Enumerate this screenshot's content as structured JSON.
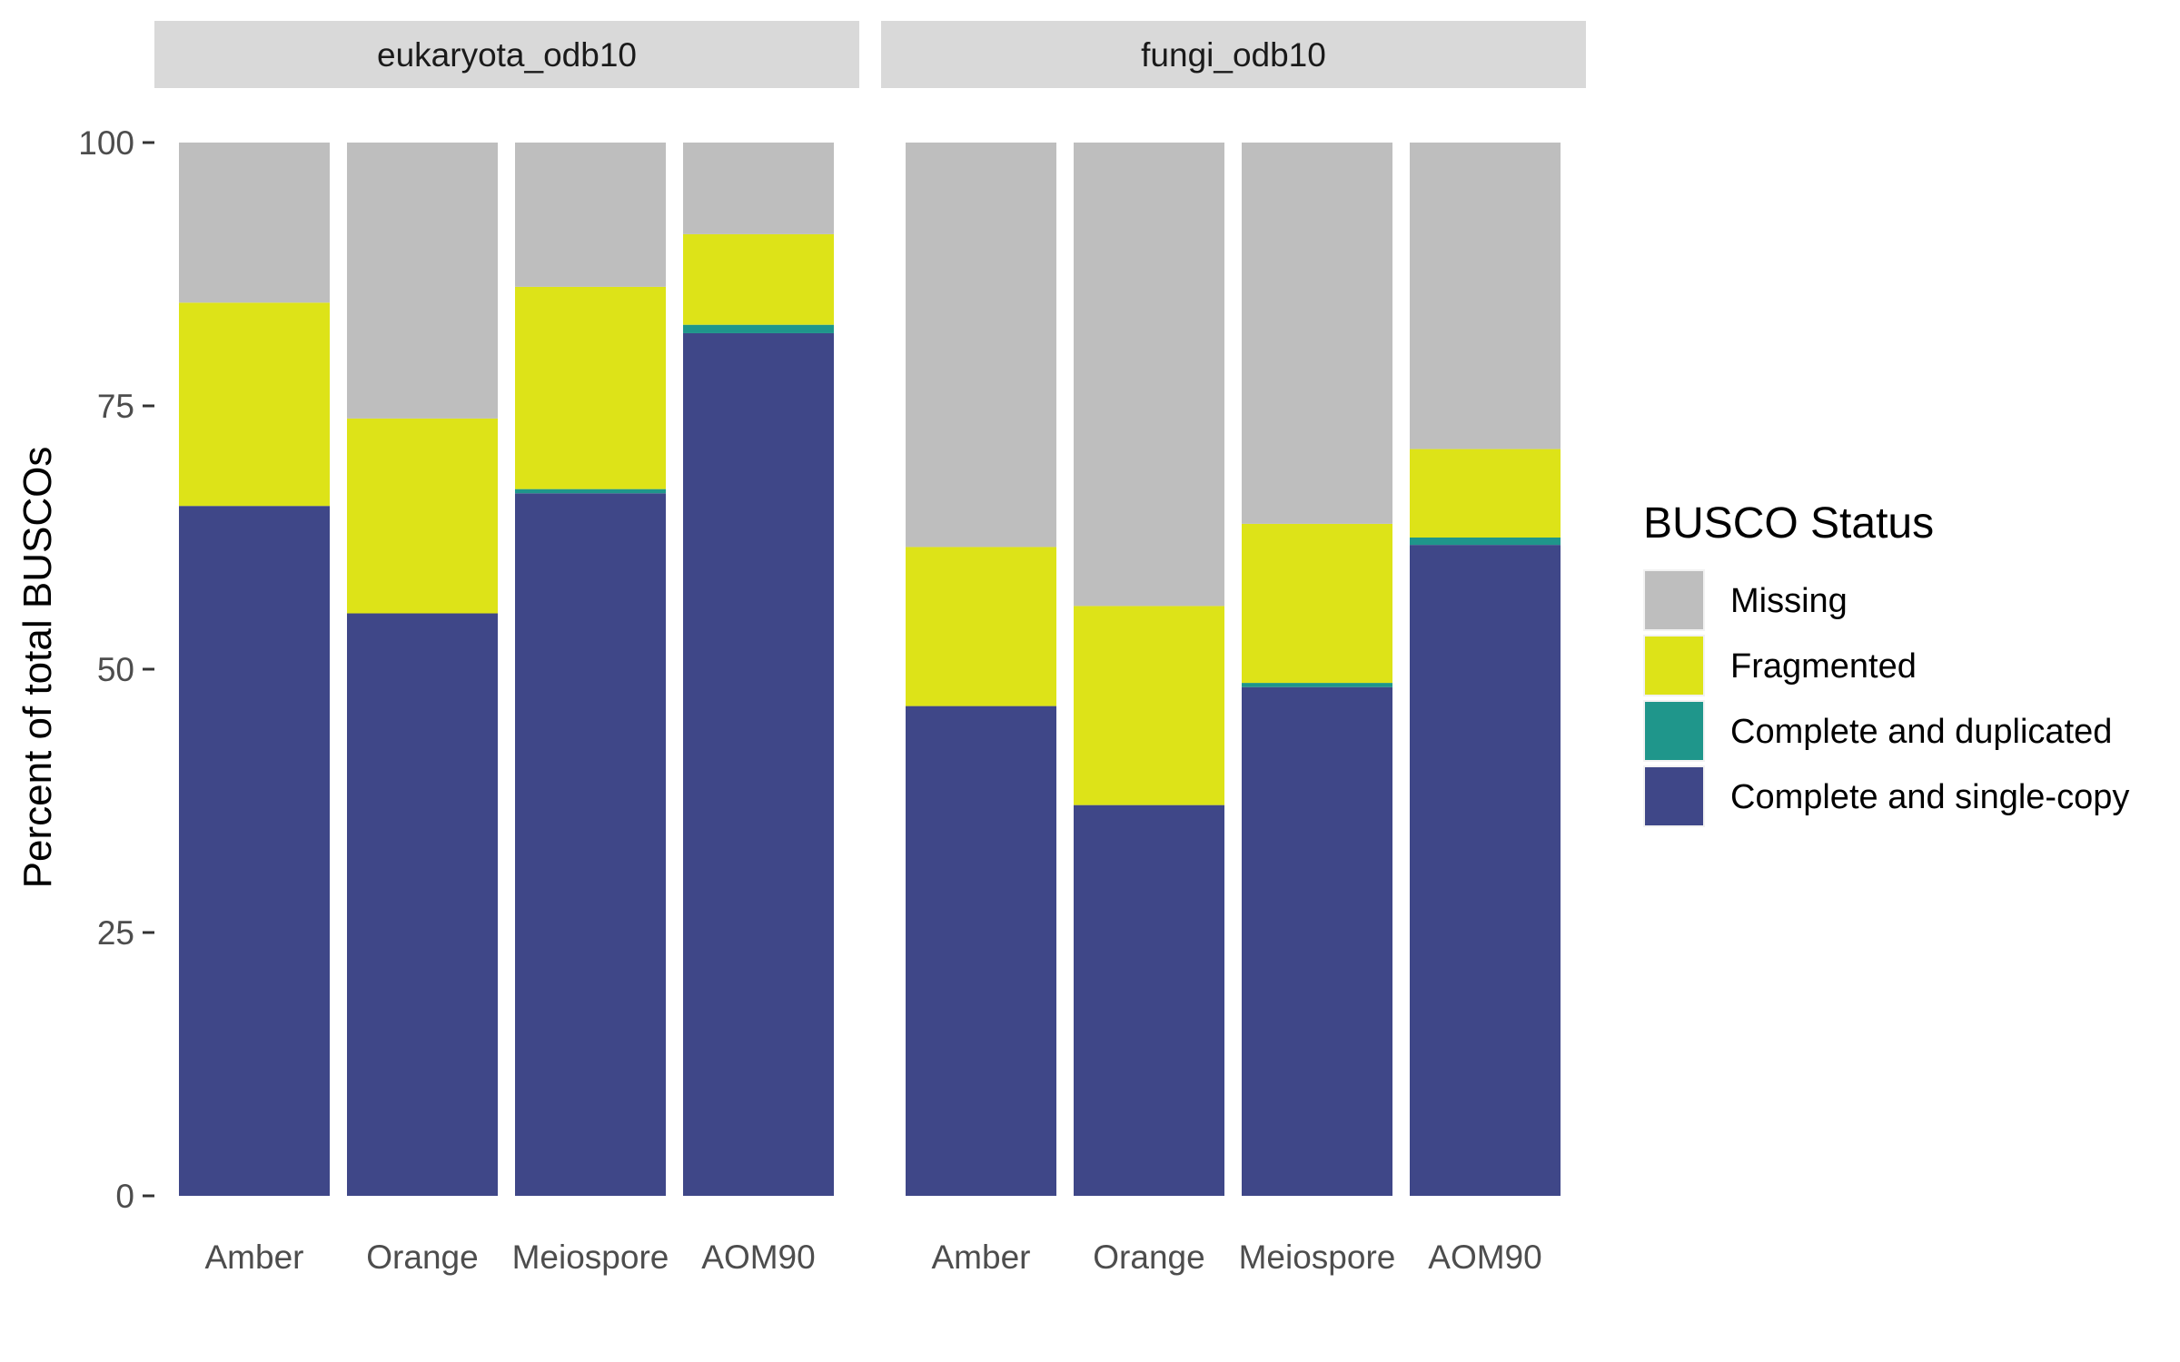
{
  "chart_data": {
    "type": "bar",
    "stacked": true,
    "ylabel": "Percent of total BUSCOs",
    "ylim": [
      0,
      100
    ],
    "yticks": [
      0,
      25,
      50,
      75,
      100
    ],
    "legend": {
      "title": "BUSCO Status",
      "placement": "right",
      "entries": [
        "Missing",
        "Fragmented",
        "Complete and duplicated",
        "Complete and single-copy"
      ]
    },
    "colors": {
      "Missing": "#bebebe",
      "Fragmented": "#dde318",
      "Complete and duplicated": "#1f968b",
      "Complete and single-copy": "#3f4788"
    },
    "stack_order": [
      "Complete and single-copy",
      "Complete and duplicated",
      "Fragmented",
      "Missing"
    ],
    "panels": [
      {
        "facet": "eukaryota_odb10",
        "categories": [
          "Amber",
          "Orange",
          "Meiospore",
          "AOM90"
        ],
        "series": [
          {
            "name": "Complete and single-copy",
            "values": [
              65.5,
              55.3,
              66.7,
              81.9
            ]
          },
          {
            "name": "Complete and duplicated",
            "values": [
              0.0,
              0.0,
              0.4,
              0.8
            ]
          },
          {
            "name": "Fragmented",
            "values": [
              19.3,
              18.5,
              19.2,
              8.6
            ]
          },
          {
            "name": "Missing",
            "values": [
              15.2,
              26.2,
              13.7,
              8.7
            ]
          }
        ]
      },
      {
        "facet": "fungi_odb10",
        "categories": [
          "Amber",
          "Orange",
          "Meiospore",
          "AOM90"
        ],
        "series": [
          {
            "name": "Complete and single-copy",
            "values": [
              46.5,
              37.1,
              48.3,
              61.8
            ]
          },
          {
            "name": "Complete and duplicated",
            "values": [
              0.0,
              0.0,
              0.4,
              0.7
            ]
          },
          {
            "name": "Fragmented",
            "values": [
              15.1,
              18.9,
              15.1,
              8.4
            ]
          },
          {
            "name": "Missing",
            "values": [
              38.4,
              44.0,
              36.2,
              29.1
            ]
          }
        ]
      }
    ]
  }
}
